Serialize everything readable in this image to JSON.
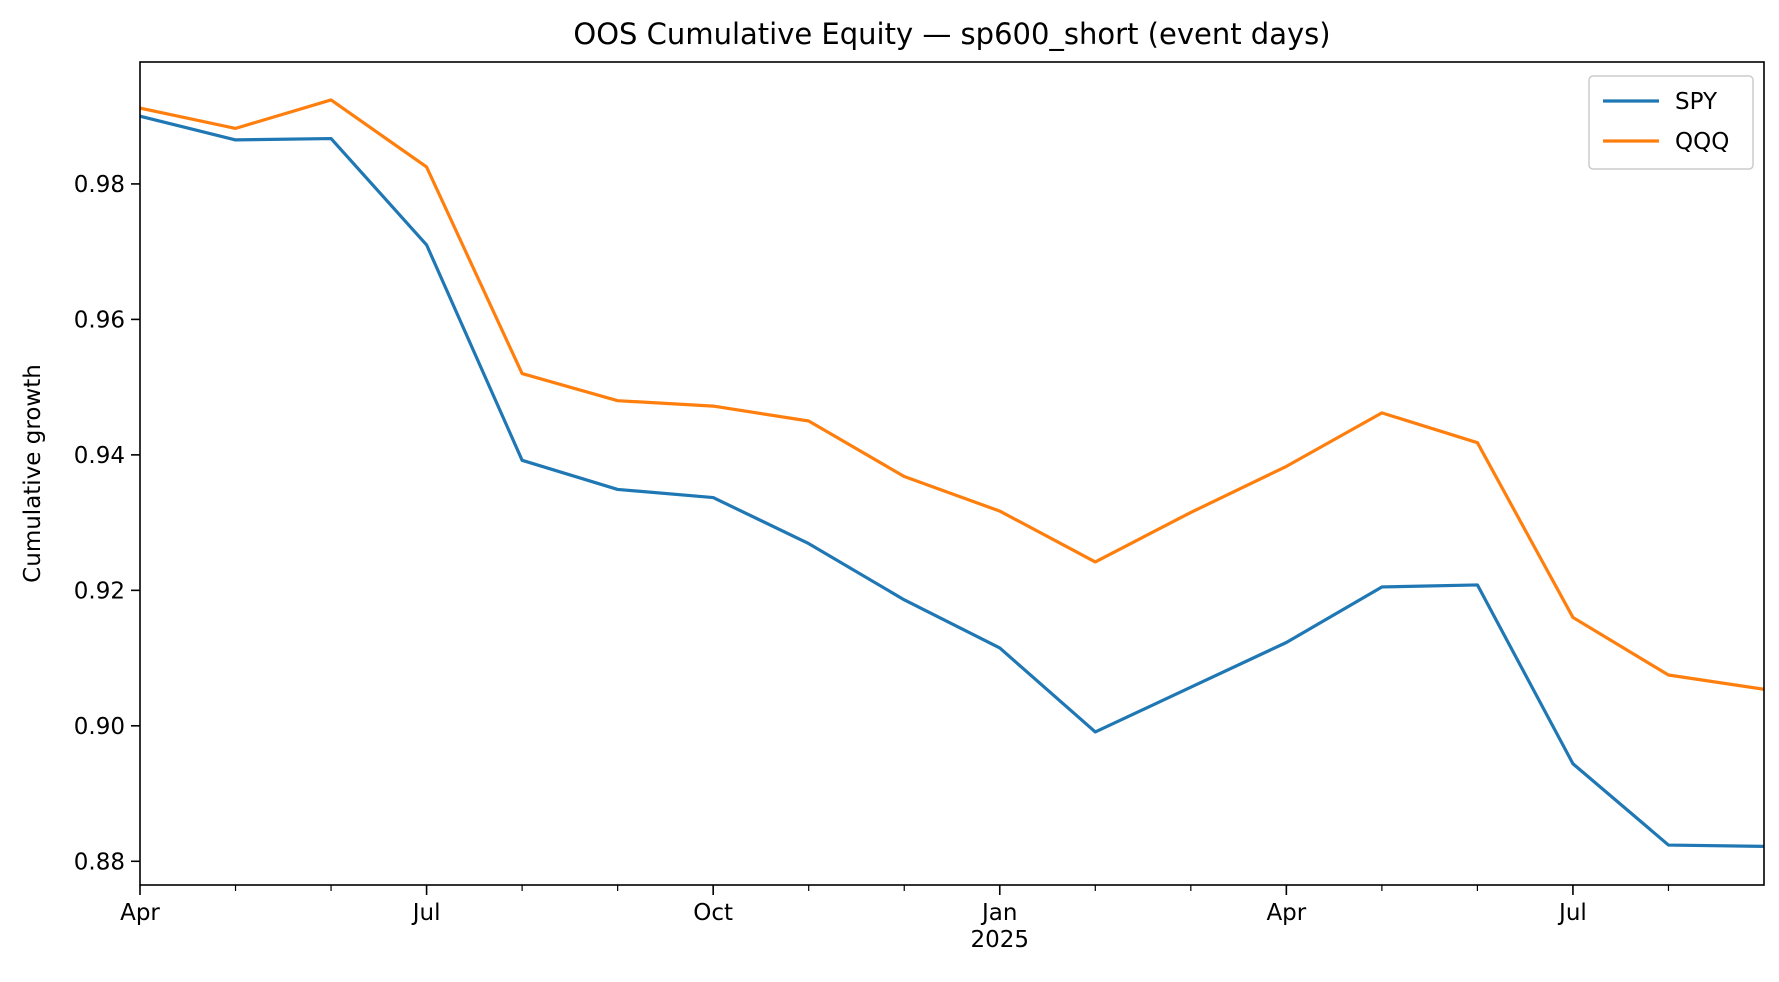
{
  "chart_data": {
    "type": "line",
    "title": "OOS Cumulative Equity — sp600_short (event days)",
    "xlabel": "",
    "ylabel": "Cumulative growth",
    "x": [
      "2024-04",
      "2024-05",
      "2024-06",
      "2024-07",
      "2024-08",
      "2024-09",
      "2024-10",
      "2024-11",
      "2024-12",
      "2025-01",
      "2025-02",
      "2025-03",
      "2025-04",
      "2025-05",
      "2025-06",
      "2025-07",
      "2025-08",
      "2025-09"
    ],
    "xlim": [
      "2024-04",
      "2025-09"
    ],
    "ylim": [
      0.8765,
      0.998
    ],
    "x_ticks": [
      {
        "x": "2024-04",
        "label": "Apr",
        "sub": ""
      },
      {
        "x": "2024-07",
        "label": "Jul",
        "sub": ""
      },
      {
        "x": "2024-10",
        "label": "Oct",
        "sub": ""
      },
      {
        "x": "2025-01",
        "label": "Jan",
        "sub": "2025"
      },
      {
        "x": "2025-04",
        "label": "Apr",
        "sub": ""
      },
      {
        "x": "2025-07",
        "label": "Jul",
        "sub": ""
      }
    ],
    "x_minor_ticks": [
      "2024-05",
      "2024-06",
      "2024-08",
      "2024-09",
      "2024-11",
      "2024-12",
      "2025-02",
      "2025-03",
      "2025-05",
      "2025-06",
      "2025-08"
    ],
    "y_ticks": [
      0.88,
      0.9,
      0.92,
      0.94,
      0.96,
      0.98
    ],
    "grid": false,
    "legend_position": "top-right",
    "series": [
      {
        "name": "SPY",
        "color": "#1f77b4",
        "values": [
          0.99,
          0.9865,
          0.9867,
          0.971,
          0.9392,
          0.9349,
          0.9337,
          0.9269,
          0.9186,
          0.9115,
          0.8991,
          0.9057,
          0.9123,
          0.9205,
          0.9208,
          0.8944,
          0.8824,
          0.8822
        ]
      },
      {
        "name": "QQQ",
        "color": "#ff7f0e",
        "values": [
          0.9912,
          0.9882,
          0.9924,
          0.9825,
          0.952,
          0.948,
          0.9472,
          0.945,
          0.9368,
          0.9317,
          0.9242,
          0.9315,
          0.9383,
          0.9462,
          0.9418,
          0.916,
          0.9075,
          0.9054
        ]
      }
    ]
  }
}
